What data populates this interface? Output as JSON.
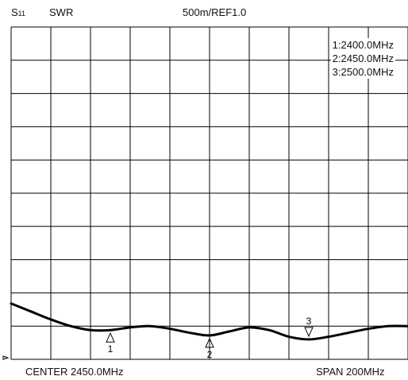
{
  "header": {
    "param": "S",
    "param_sub": "11",
    "format": "SWR",
    "scale": "500m/REF1.0"
  },
  "footer": {
    "center": "CENTER 2450.0MHz",
    "span": "SPAN 200MHz"
  },
  "markers": [
    {
      "id": "1",
      "label": "1:2400.0MHz",
      "freq_mhz": 2400.0,
      "swr": 0.94,
      "symbol": "up"
    },
    {
      "id": "2",
      "label": "2:2450.0MHz",
      "freq_mhz": 2450.0,
      "swr": 0.86,
      "symbol": "up"
    },
    {
      "id": "3",
      "label": "3:2500.0MHz",
      "freq_mhz": 2500.0,
      "swr": 0.8,
      "symbol": "down"
    }
  ],
  "chart_data": {
    "type": "line",
    "title": "",
    "xlabel": "",
    "ylabel": "",
    "x_unit": "MHz",
    "xlim": [
      2350,
      2550
    ],
    "ylim": [
      0.5,
      5.5
    ],
    "ref_value": 1.0,
    "scale_per_div": 0.5,
    "x_divisions": 10,
    "y_divisions": 10,
    "grid": true,
    "series": [
      {
        "x": [
          2350,
          2360,
          2370,
          2380,
          2390,
          2400,
          2410,
          2420,
          2430,
          2440,
          2450,
          2460,
          2470,
          2480,
          2490,
          2500,
          2510,
          2520,
          2530,
          2540,
          2550
        ],
        "y": [
          1.34,
          1.22,
          1.1,
          1.0,
          0.94,
          0.94,
          0.98,
          1.0,
          0.96,
          0.9,
          0.86,
          0.92,
          0.98,
          0.94,
          0.84,
          0.8,
          0.84,
          0.9,
          0.96,
          1.0,
          1.0
        ]
      }
    ]
  }
}
